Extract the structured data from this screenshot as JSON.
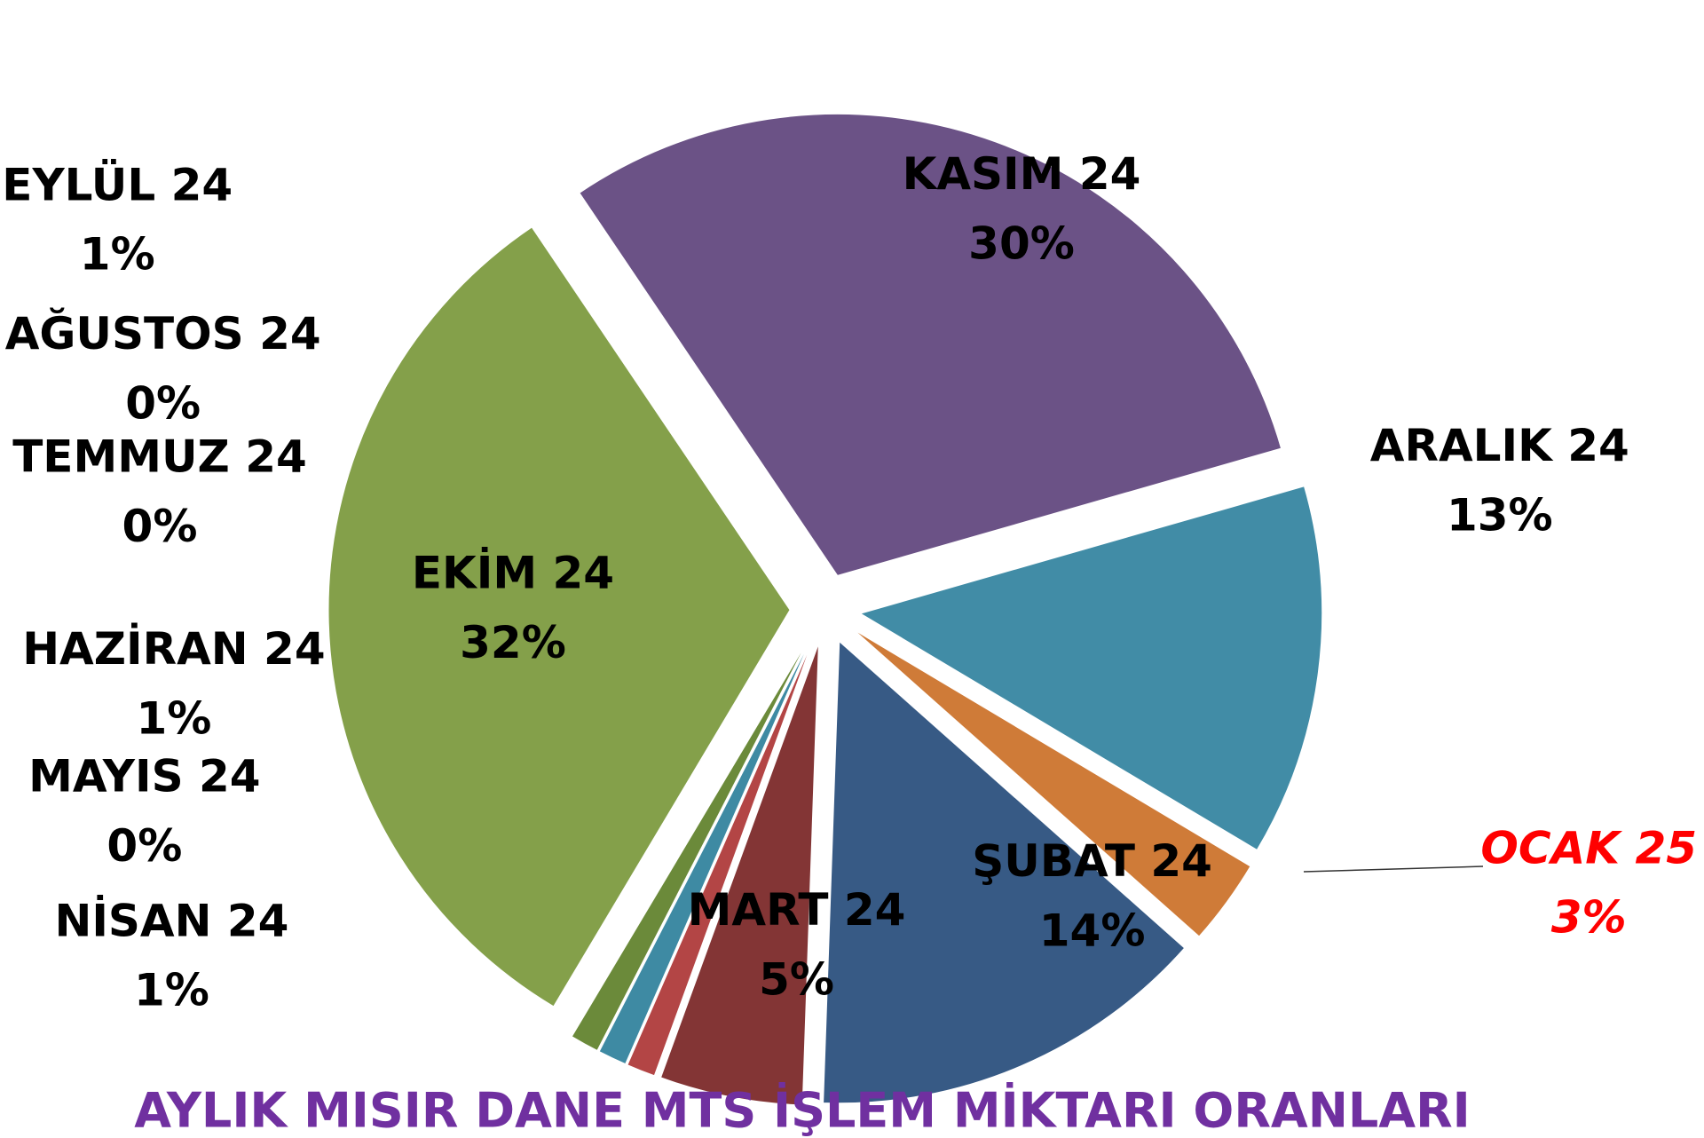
{
  "chart_data": {
    "type": "pie",
    "title": "AYLIK MISIR DANE MTS İŞLEM MİKTARI ORANLARI",
    "categories": [
      "MART 24",
      "NİSAN 24",
      "MAYIS 24",
      "HAZİRAN 24",
      "TEMMUZ 24",
      "AĞUSTOS 24",
      "EYLÜL 24",
      "EKİM 24",
      "KASIM 24",
      "ARALIK 24",
      "OCAK 25",
      "ŞUBAT 24"
    ],
    "values": [
      5,
      1,
      0,
      1,
      0,
      0,
      1,
      32,
      30,
      13,
      3,
      14
    ],
    "value_labels": [
      "5%",
      "1%",
      "0%",
      "1%",
      "0%",
      "0%",
      "1%",
      "32%",
      "30%",
      "13%",
      "3%",
      "14%"
    ],
    "colors": [
      "#833535",
      "#b34545",
      "#d08040",
      "#3e8aa3",
      "#5d4a8a",
      "#6a7fb0",
      "#6b8a3a",
      "#84a04a",
      "#6b5286",
      "#418ca6",
      "#cf7b38",
      "#375a85"
    ]
  }
}
